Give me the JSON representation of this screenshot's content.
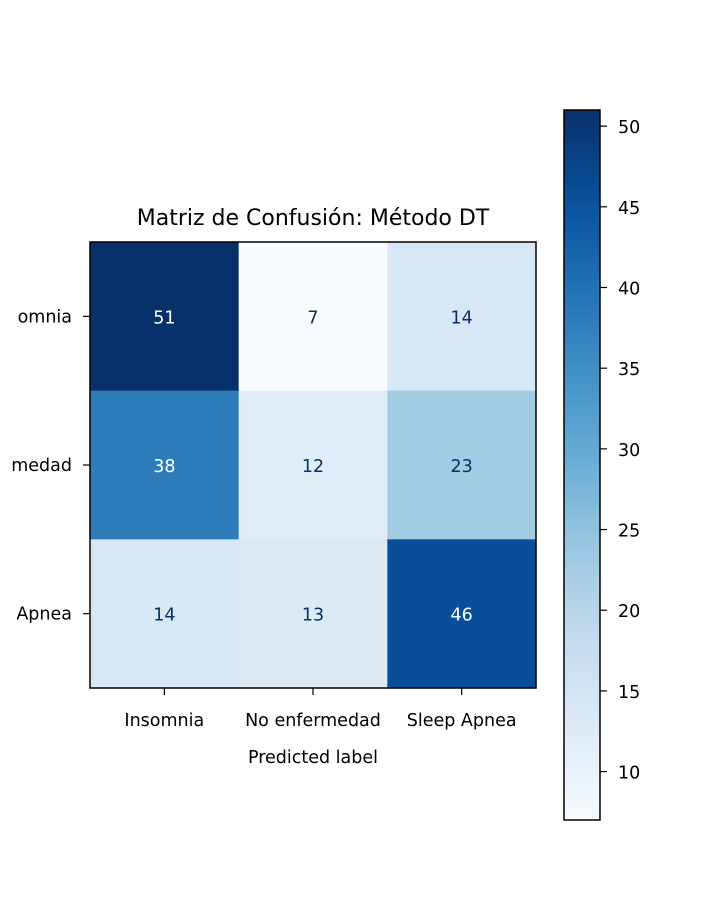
{
  "chart_data": {
    "type": "heatmap",
    "title": "Matriz de Confusión: Método DT",
    "xlabel": "Predicted label",
    "ylabel": "",
    "x_categories": [
      "Insomnia",
      "No enfermedad",
      "Sleep Apnea"
    ],
    "y_categories": [
      "Insomnia",
      "No enfermedad",
      "Sleep Apnea"
    ],
    "y_tick_labels_visible": [
      "omnia",
      "medad",
      "Apnea"
    ],
    "values": [
      [
        51,
        7,
        14
      ],
      [
        38,
        12,
        23
      ],
      [
        14,
        13,
        46
      ]
    ],
    "colormap": "Blues",
    "colorbar": {
      "min": 7,
      "max": 51,
      "ticks": [
        10,
        15,
        20,
        25,
        30,
        35,
        40,
        45,
        50
      ]
    }
  }
}
